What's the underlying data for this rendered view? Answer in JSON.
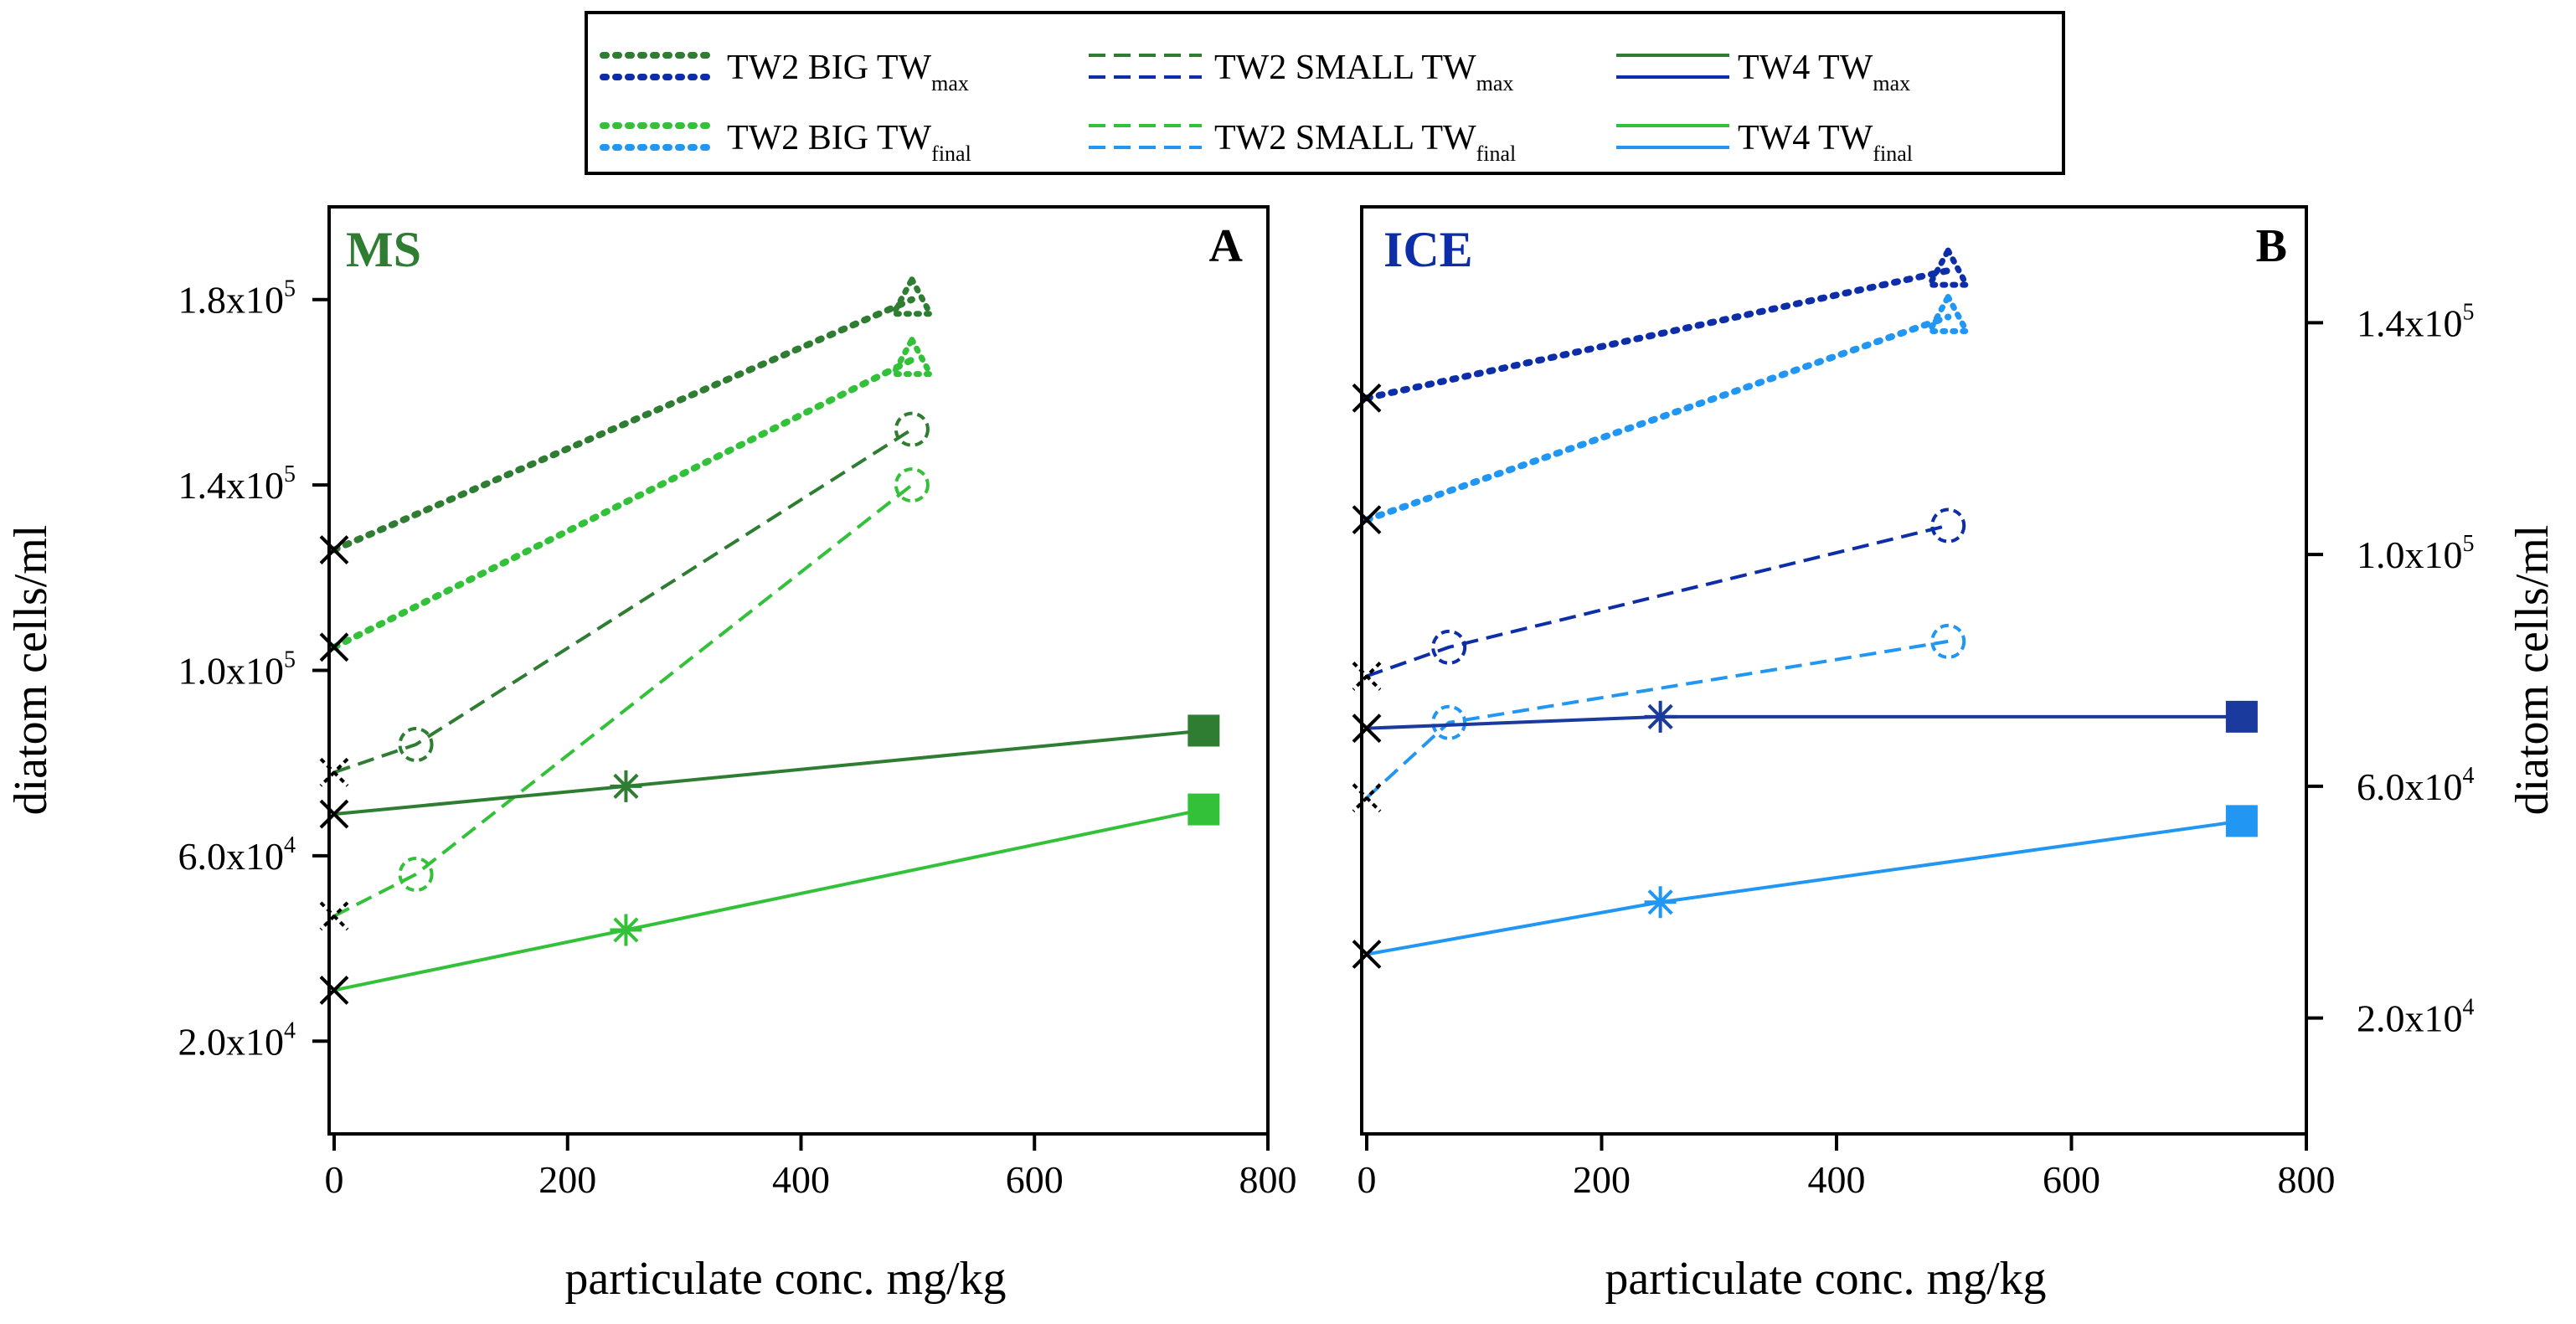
{
  "colors": {
    "ms_max": "#2e7d32",
    "ms_final": "#33c13a",
    "ice_max": "#0d2ea8",
    "ice_final": "#2196f3",
    "ice_tw4_max": "#1a3a9e",
    "axis": "#000000"
  },
  "legend": {
    "entries": [
      {
        "name": "TW2 BIG TW",
        "sub": "max",
        "style": "dotted"
      },
      {
        "name": "TW2 SMALL TW",
        "sub": "max",
        "style": "dashed"
      },
      {
        "name": "TW4 TW",
        "sub": "max",
        "style": "solid"
      },
      {
        "name": "TW2 BIG TW",
        "sub": "final",
        "style": "dotted"
      },
      {
        "name": "TW2 SMALL TW",
        "sub": "final",
        "style": "dashed"
      },
      {
        "name": "TW4 TW",
        "sub": "final",
        "style": "solid"
      }
    ]
  },
  "chart_data": [
    {
      "type": "line",
      "panel": "A",
      "label": "MS",
      "xlabel": "particulate conc. mg/kg",
      "ylabel": "diatom cells/ml",
      "xlim": [
        0,
        800
      ],
      "ylim": [
        0,
        200000
      ],
      "xticks": [
        "0",
        "200",
        "400",
        "600",
        "800"
      ],
      "yticks": [
        {
          "value": 20000,
          "base": "2.0x10",
          "exp": "4"
        },
        {
          "value": 60000,
          "base": "6.0x10",
          "exp": "4"
        },
        {
          "value": 100000,
          "base": "1.0x10",
          "exp": "5"
        },
        {
          "value": 140000,
          "base": "1.4x10",
          "exp": "5"
        },
        {
          "value": 180000,
          "base": "1.8x10",
          "exp": "5"
        }
      ],
      "y_axis_side": "left",
      "series": [
        {
          "name": "TW2 BIG TWmax",
          "style": "dotted",
          "color": "#2e7d32",
          "marker": "triangle",
          "x": [
            0,
            495
          ],
          "y": [
            126000,
            180000
          ]
        },
        {
          "name": "TW2 BIG TWfinal",
          "style": "dotted",
          "color": "#33c13a",
          "marker": "triangle",
          "x": [
            0,
            495
          ],
          "y": [
            105000,
            167000
          ]
        },
        {
          "name": "TW2 SMALL TWmax",
          "style": "dashed",
          "color": "#2e7d32",
          "marker": "circle",
          "x": [
            0,
            70,
            495
          ],
          "y": [
            78000,
            84000,
            152000
          ]
        },
        {
          "name": "TW2 SMALL TWfinal",
          "style": "dashed",
          "color": "#33c13a",
          "marker": "circle",
          "x": [
            0,
            70,
            495
          ],
          "y": [
            47000,
            56000,
            140000
          ]
        },
        {
          "name": "TW4 TWmax",
          "style": "solid",
          "color": "#2e7d32",
          "marker": "square",
          "x": [
            0,
            250,
            745
          ],
          "y": [
            69000,
            75000,
            87000
          ]
        },
        {
          "name": "TW4 TWfinal",
          "style": "solid",
          "color": "#33c13a",
          "marker": "square",
          "x": [
            0,
            250,
            745
          ],
          "y": [
            31000,
            44000,
            70000
          ]
        }
      ]
    },
    {
      "type": "line",
      "panel": "B",
      "label": "ICE",
      "xlabel": "particulate conc. mg/kg",
      "ylabel": "diatom cells/ml",
      "xlim": [
        0,
        800
      ],
      "ylim": [
        0,
        160000
      ],
      "xticks": [
        "0",
        "200",
        "400",
        "600",
        "800"
      ],
      "yticks": [
        {
          "value": 20000,
          "base": "2.0x10",
          "exp": "4"
        },
        {
          "value": 60000,
          "base": "6.0x10",
          "exp": "4"
        },
        {
          "value": 100000,
          "base": "1.0x10",
          "exp": "5"
        },
        {
          "value": 140000,
          "base": "1.4x10",
          "exp": "5"
        }
      ],
      "y_axis_side": "right",
      "series": [
        {
          "name": "TW2 BIG TWmax",
          "style": "dotted",
          "color": "#0d2ea8",
          "marker": "triangle",
          "x": [
            0,
            495
          ],
          "y": [
            127000,
            149000
          ]
        },
        {
          "name": "TW2 BIG TWfinal",
          "style": "dotted",
          "color": "#2196f3",
          "marker": "triangle",
          "x": [
            0,
            495
          ],
          "y": [
            106000,
            141000
          ]
        },
        {
          "name": "TW2 SMALL TWmax",
          "style": "dashed",
          "color": "#0d2ea8",
          "marker": "circle",
          "x": [
            0,
            70,
            495
          ],
          "y": [
            79000,
            84000,
            105000
          ]
        },
        {
          "name": "TW2 SMALL TWfinal",
          "style": "dashed",
          "color": "#2196f3",
          "marker": "circle",
          "x": [
            0,
            70,
            495
          ],
          "y": [
            58000,
            71000,
            85000
          ]
        },
        {
          "name": "TW4 TWmax",
          "style": "solid",
          "color": "#1a3a9e",
          "marker": "square",
          "x": [
            0,
            250,
            745
          ],
          "y": [
            70000,
            72000,
            72000
          ]
        },
        {
          "name": "TW4 TWfinal",
          "style": "solid",
          "color": "#2196f3",
          "marker": "square",
          "x": [
            0,
            250,
            745
          ],
          "y": [
            31000,
            40000,
            54000
          ]
        }
      ]
    }
  ]
}
